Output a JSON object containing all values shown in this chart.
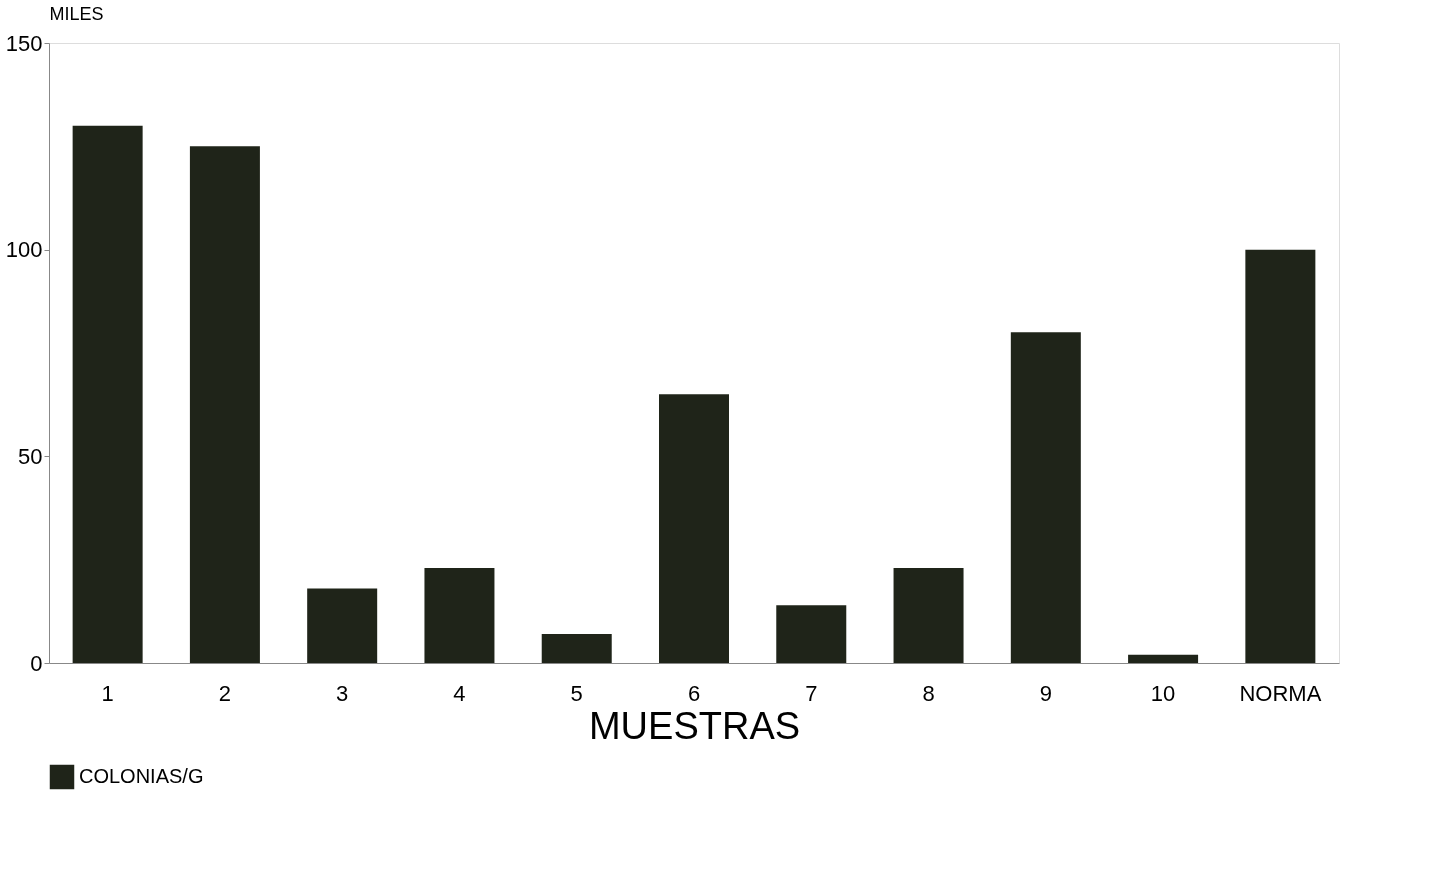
{
  "chart_data": {
    "type": "bar",
    "ylabel": "MILES",
    "xlabel": "MUESTRAS",
    "categories": [
      "1",
      "2",
      "3",
      "4",
      "5",
      "6",
      "7",
      "8",
      "9",
      "10",
      "NORMA"
    ],
    "series": [
      {
        "name": "COLONIAS/G",
        "color": "#1f2419",
        "values": [
          130,
          125,
          18,
          23,
          7,
          65,
          14,
          23,
          80,
          2,
          100
        ]
      }
    ],
    "ylim": [
      0,
      150
    ],
    "yticks": [
      0,
      50,
      100,
      150
    ],
    "legend": "bottom",
    "grid": false
  }
}
